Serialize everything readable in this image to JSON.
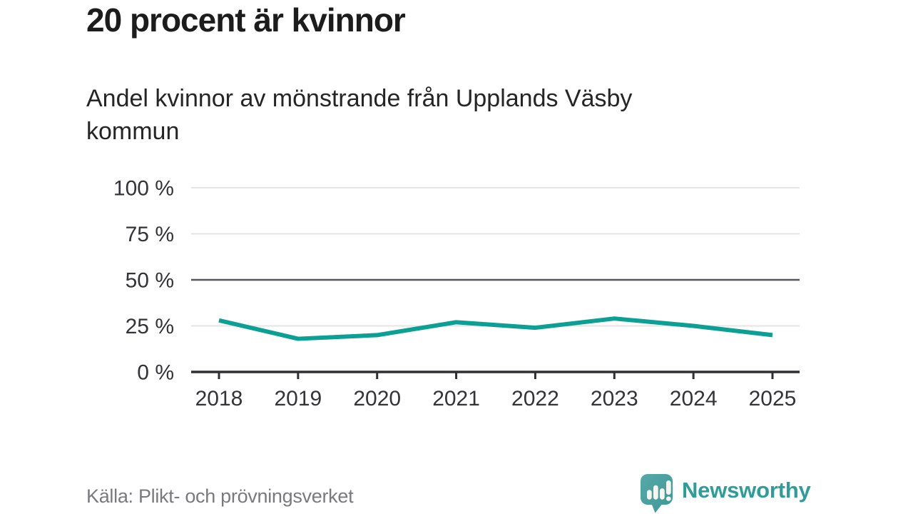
{
  "header": {
    "title": "20 procent är kvinnor",
    "subtitle": "Andel kvinnor av mönstrande från Upplands Väsby\nkommun"
  },
  "chart_data": {
    "type": "line",
    "title": "20 procent är kvinnor",
    "subtitle": "Andel kvinnor av mönstrande från Upplands Väsby kommun",
    "categories": [
      "2018",
      "2019",
      "2020",
      "2021",
      "2022",
      "2023",
      "2024",
      "2025"
    ],
    "series": [
      {
        "name": "Andel kvinnor av mönstrande",
        "values": [
          28,
          18,
          20,
          27,
          24,
          29,
          25,
          20
        ]
      }
    ],
    "unit": "%",
    "xlabel": "",
    "ylabel": "",
    "ylim": [
      0,
      100
    ],
    "yticks": [
      0,
      25,
      50,
      75,
      100
    ],
    "ytick_labels": [
      "0 %",
      "25 %",
      "50 %",
      "75 %",
      "100 %"
    ],
    "grid": "horizontal",
    "emphasized_gridline": 50,
    "legend": "none",
    "line_color": "#0ca095"
  },
  "footer": {
    "source": "Källa: Plikt- och prövningsverket",
    "brand": "Newsworthy"
  },
  "colors": {
    "accent_teal": "#0ca095",
    "brand_teal": "#2d9d9a",
    "logo_bubble": "#4aa0a1",
    "title_text": "#1c1c1c",
    "axis_text": "#333338",
    "gridline_light": "#e4e4e4",
    "gridline_dark": "#55555b",
    "axis_line": "#2f2f33",
    "source_text": "#7a7a7e"
  }
}
